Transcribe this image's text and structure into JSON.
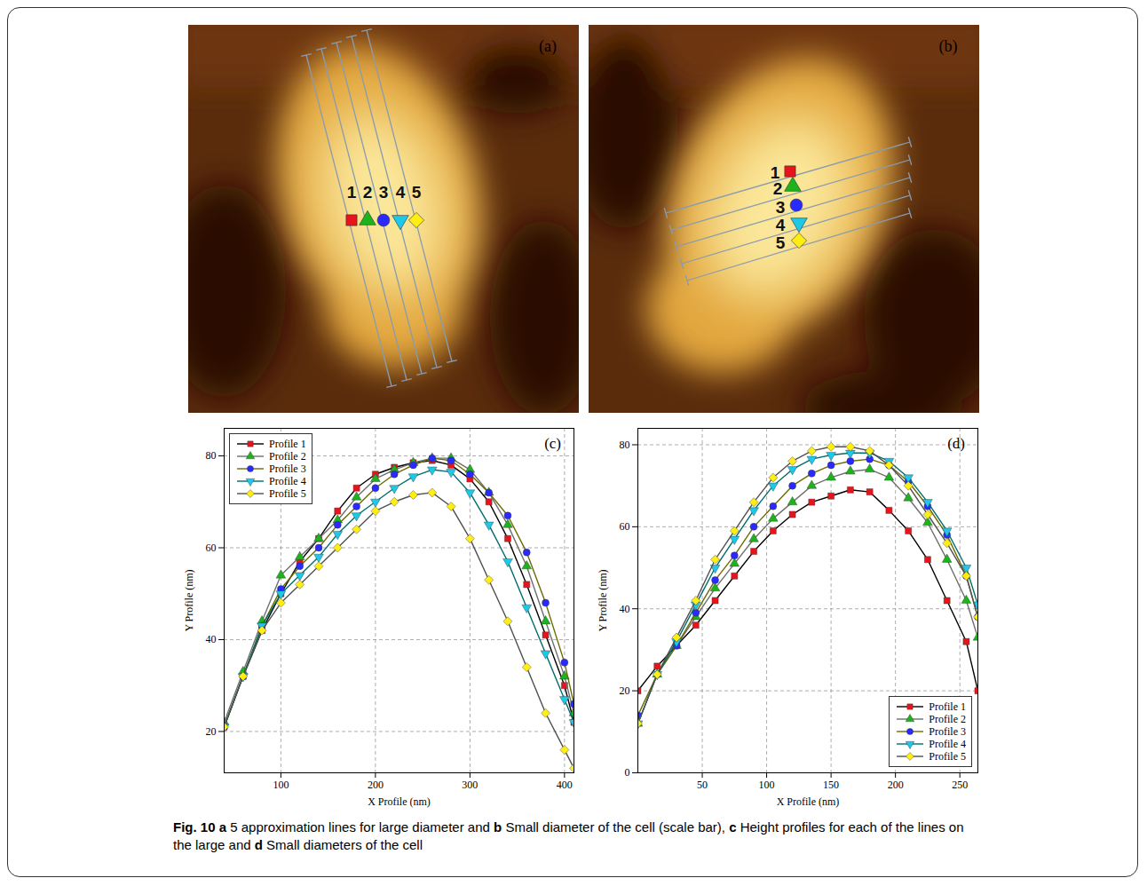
{
  "figure": {
    "caption": [
      {
        "text": "Fig. 10",
        "bold": true
      },
      {
        "text": "a",
        "bold": true
      },
      {
        "text": "5 approximation lines for large diameter and",
        "bold": false
      },
      {
        "text": "b",
        "bold": true
      },
      {
        "text": "Small diameter of the cell (scale bar),",
        "bold": false
      },
      {
        "text": "c",
        "bold": true
      },
      {
        "text": "Height profiles for each of the lines on the large and",
        "bold": false
      },
      {
        "text": "d",
        "bold": true
      },
      {
        "text": "Small diameters of the cell",
        "bold": false
      }
    ],
    "images": [
      {
        "panel_label": "(a)",
        "line_labels": [
          "1",
          "2",
          "3",
          "4",
          "5"
        ]
      },
      {
        "panel_label": "(b)",
        "line_labels": [
          "1",
          "2",
          "3",
          "4",
          "5"
        ]
      }
    ]
  },
  "chart_data": [
    {
      "type": "line",
      "panel_label": "(c)",
      "x_label": "X Profile (nm)",
      "y_label": "Y Profile (nm)",
      "xlim": [
        40,
        410
      ],
      "xticks": [
        100,
        200,
        300,
        400
      ],
      "ylim": [
        11,
        86
      ],
      "yticks": [
        20,
        40,
        60,
        80
      ],
      "grid": true,
      "legend": "top-left",
      "x": [
        40,
        60,
        80,
        100,
        120,
        140,
        160,
        180,
        200,
        220,
        240,
        260,
        280,
        300,
        320,
        340,
        360,
        380,
        400,
        410
      ],
      "series": [
        {
          "name": "Profile 1",
          "color": "#e8141c",
          "marker": "square",
          "values": [
            21,
            32,
            42,
            50,
            57,
            62,
            68,
            73,
            76,
            77.5,
            78.5,
            79,
            78,
            75,
            70,
            62,
            52,
            41,
            30,
            22
          ]
        },
        {
          "name": "Profile 2",
          "color": "#1db31d",
          "marker": "triangle",
          "values": [
            22,
            33,
            44,
            54,
            58,
            62,
            66,
            71,
            75,
            77,
            78.5,
            79.5,
            79.5,
            77,
            72,
            65,
            56,
            44,
            32,
            24
          ]
        },
        {
          "name": "Profile 3",
          "color": "#2a2aff",
          "marker": "circle",
          "values": [
            21,
            32,
            43,
            51,
            56,
            60,
            65,
            69,
            73,
            76,
            78,
            79.5,
            79,
            76,
            72,
            67,
            59,
            48,
            35,
            26
          ]
        },
        {
          "name": "Profile 4",
          "color": "#1ec8e8",
          "marker": "triangle-down",
          "values": [
            21,
            32,
            43,
            50,
            54,
            58,
            63,
            67,
            70,
            73,
            75.5,
            77,
            76.5,
            72,
            65,
            57,
            47,
            37,
            27,
            22
          ]
        },
        {
          "name": "Profile 5",
          "color": "#ffee11",
          "marker": "diamond",
          "values": [
            21,
            32,
            42,
            48,
            52,
            56,
            60,
            64,
            68,
            70,
            71.5,
            72,
            69,
            62,
            53,
            44,
            34,
            24,
            16,
            12
          ]
        }
      ]
    },
    {
      "type": "line",
      "panel_label": "(d)",
      "x_label": "X Profile (nm)",
      "y_label": "Y Profile (nm)",
      "xlim": [
        0,
        264
      ],
      "xticks": [
        50,
        100,
        150,
        200,
        250
      ],
      "ylim": [
        0,
        84
      ],
      "yticks": [
        0,
        20,
        40,
        60,
        80
      ],
      "grid": true,
      "legend": "bottom-right",
      "x": [
        0,
        15,
        30,
        45,
        60,
        75,
        90,
        105,
        120,
        135,
        150,
        165,
        180,
        195,
        210,
        225,
        240,
        255,
        264
      ],
      "series": [
        {
          "name": "Profile 1",
          "color": "#e8141c",
          "marker": "square",
          "values": [
            20,
            26,
            31,
            36,
            42,
            48,
            54,
            59,
            63,
            66,
            67.5,
            69,
            68.5,
            64,
            59,
            52,
            42,
            32,
            20
          ]
        },
        {
          "name": "Profile 2",
          "color": "#1db31d",
          "marker": "triangle",
          "values": [
            12,
            24,
            31,
            38,
            45,
            51,
            57,
            62,
            66,
            70,
            72,
            73.5,
            74,
            72,
            67,
            61,
            52,
            42,
            33
          ]
        },
        {
          "name": "Profile 3",
          "color": "#2a2aff",
          "marker": "circle",
          "values": [
            14,
            24,
            31,
            39,
            47,
            53,
            60,
            65,
            70,
            73,
            75,
            76,
            76.5,
            75,
            71,
            65,
            58,
            48,
            38
          ]
        },
        {
          "name": "Profile 4",
          "color": "#1ec8e8",
          "marker": "triangle-down",
          "values": [
            12,
            24,
            32,
            41,
            50,
            57,
            64,
            70,
            74,
            76.5,
            77.5,
            78,
            78,
            76,
            72,
            66,
            59,
            50,
            41
          ]
        },
        {
          "name": "Profile 5",
          "color": "#ffee11",
          "marker": "diamond",
          "values": [
            12,
            24,
            33,
            42,
            52,
            59,
            66,
            72,
            76,
            78.5,
            79.5,
            79.5,
            78.5,
            75,
            70,
            63,
            56,
            48,
            38
          ]
        }
      ]
    }
  ]
}
